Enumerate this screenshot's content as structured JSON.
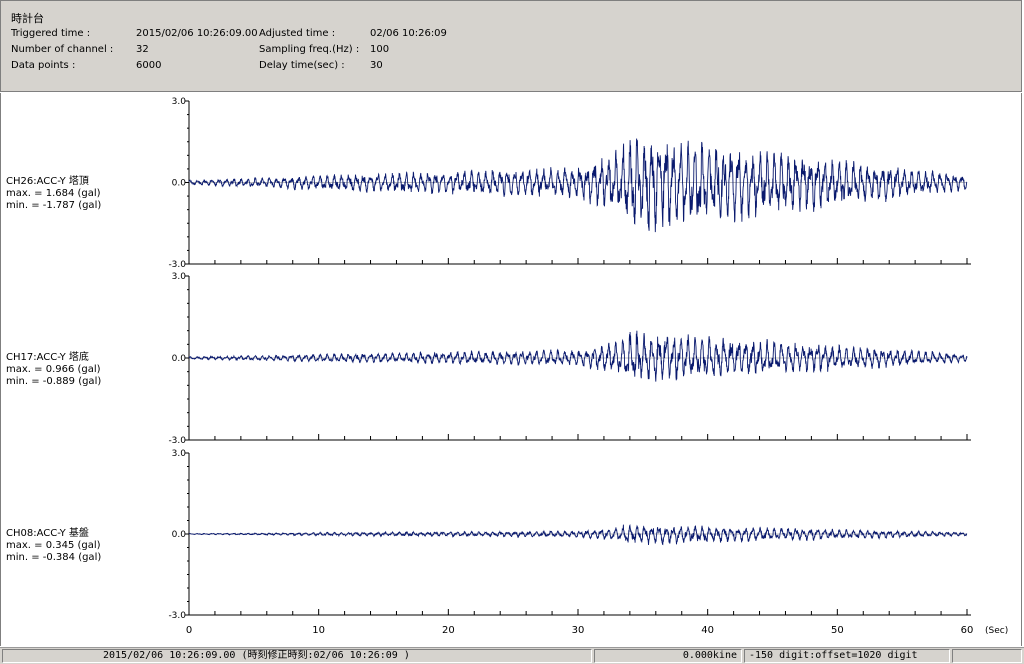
{
  "header": {
    "title": "時計台",
    "triggered_label": "Triggered time :",
    "triggered_value": "2015/02/06 10:26:09.00",
    "channels_label": "Number of channel :",
    "channels_value": "32",
    "points_label": "Data points :",
    "points_value": "6000",
    "adjusted_label": "Adjusted time :",
    "adjusted_value": "02/06 10:26:09",
    "sampling_label": "Sampling freq.(Hz) :",
    "sampling_value": "100",
    "delay_label": "Delay time(sec) :",
    "delay_value": "30"
  },
  "plot": {
    "x_unit": "(Sec)",
    "x_ticks": [
      "0",
      "10",
      "20",
      "30",
      "40",
      "50",
      "60"
    ],
    "y_ticks": [
      "3.0",
      "0.0",
      "-3.0"
    ],
    "trace_color": "#0a1a6e"
  },
  "channels": [
    {
      "name": "CH26:ACC-Y 塔頂",
      "max": "max. = 1.684 (gal)",
      "min": "min. = -1.787 (gal)"
    },
    {
      "name": "CH17:ACC-Y 塔底",
      "max": "max. = 0.966 (gal)",
      "min": "min. = -0.889 (gal)"
    },
    {
      "name": "CH08:ACC-Y 基盤",
      "max": "max. = 0.345 (gal)",
      "min": "min. = -0.384 (gal)"
    }
  ],
  "chart_data": [
    {
      "type": "line",
      "series": [
        {
          "name": "CH26:ACC-Y 塔頂"
        }
      ],
      "xlim": [
        0,
        60
      ],
      "ylim": [
        -3.0,
        3.0
      ],
      "max": 1.684,
      "min": -1.787
    },
    {
      "type": "line",
      "series": [
        {
          "name": "CH17:ACC-Y 塔底"
        }
      ],
      "xlim": [
        0,
        60
      ],
      "ylim": [
        -3.0,
        3.0
      ],
      "max": 0.966,
      "min": -0.889
    },
    {
      "type": "line",
      "series": [
        {
          "name": "CH08:ACC-Y 基盤"
        }
      ],
      "xlim": [
        0,
        60
      ],
      "ylim": [
        -3.0,
        3.0
      ],
      "max": 0.345,
      "min": -0.384
    }
  ],
  "status": {
    "time": "2015/02/06 10:26:09.00 (時刻修正時刻:02/06 10:26:09 )",
    "kine": "0.000kine",
    "digit": "-150 digit:offset=1020 digit"
  }
}
